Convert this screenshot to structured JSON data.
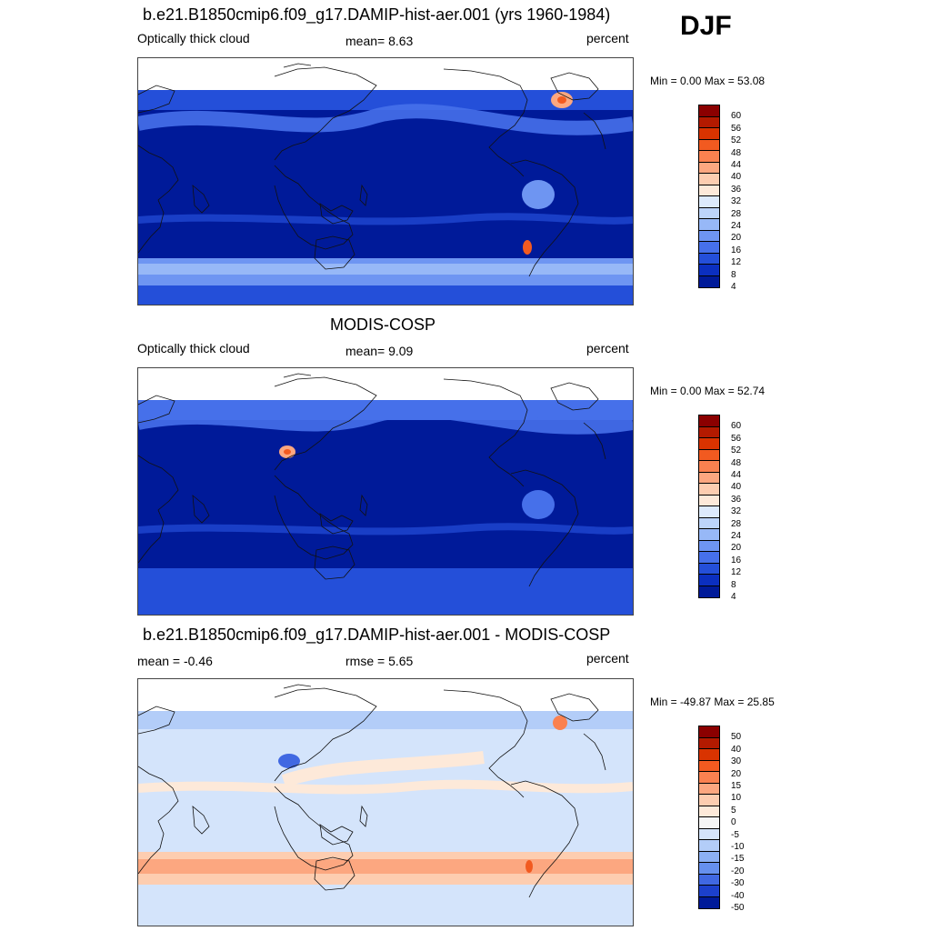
{
  "season": "DJF",
  "panels": [
    {
      "title": "b.e21.B1850cmip6.f09_g17.DAMIP-hist-aer.001 (yrs 1960-1984)",
      "left_label": "Optically thick cloud",
      "center_label": "mean=   8.63",
      "right_label": "percent",
      "minmax": "Min =   0.00 Max =  53.08",
      "colorbar_labels": [
        "60",
        "56",
        "52",
        "48",
        "44",
        "40",
        "36",
        "32",
        "28",
        "24",
        "20",
        "16",
        "12",
        "8",
        "4"
      ]
    },
    {
      "title": "MODIS-COSP",
      "left_label": "Optically thick cloud",
      "center_label": "mean=   9.09",
      "right_label": "percent",
      "minmax": "Min =   0.00 Max =  52.74",
      "colorbar_labels": [
        "60",
        "56",
        "52",
        "48",
        "44",
        "40",
        "36",
        "32",
        "28",
        "24",
        "20",
        "16",
        "12",
        "8",
        "4"
      ]
    },
    {
      "title": "b.e21.B1850cmip6.f09_g17.DAMIP-hist-aer.001 - MODIS-COSP",
      "left_label": "mean =  -0.46",
      "center_label": "rmse =   5.65",
      "right_label": "percent",
      "minmax": "Min = -49.87 Max =  25.85",
      "colorbar_labels": [
        "50",
        "40",
        "30",
        "20",
        "15",
        "10",
        "5",
        "0",
        "-5",
        "-10",
        "-15",
        "-20",
        "-30",
        "-40",
        "-50"
      ]
    }
  ],
  "colors": {
    "sequential": [
      "#8b0000",
      "#b31a00",
      "#d93300",
      "#f25a20",
      "#fa8150",
      "#fca780",
      "#fdcdb0",
      "#fde9d9",
      "#ddeafc",
      "#bcd4fa",
      "#97b8f7",
      "#6e95f2",
      "#4670ea",
      "#244fd9",
      "#0b2fc0",
      "#001a99"
    ],
    "diverging": [
      "#8b0000",
      "#b31a00",
      "#d93300",
      "#f25a20",
      "#fa8150",
      "#fca780",
      "#fdcdb0",
      "#fde9d9",
      "#f5f5f5",
      "#d4e4fb",
      "#b3cdf8",
      "#8cb0f4",
      "#6690ee",
      "#4068e2",
      "#1c40cc",
      "#001a99"
    ]
  }
}
